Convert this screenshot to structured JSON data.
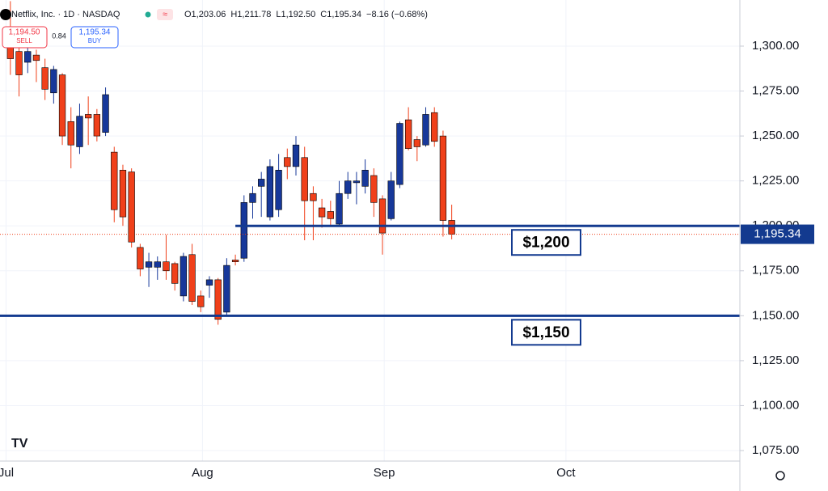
{
  "header": {
    "symbol": "Netflix, Inc. · 1D · NASDAQ",
    "ohlc": [
      "O1,203.06",
      "H1,211.78",
      "L1,192.50",
      "C1,195.34",
      "−8.16 (−0.68%)"
    ],
    "sell_price": "1,194.50",
    "sell": "SELL",
    "spread": "0.84",
    "buy_price": "1,195.34",
    "buy": "BUY"
  },
  "chart_data": {
    "type": "candlestick",
    "up_color": "#17389a",
    "down_color": "#f0401a",
    "open": [
      1302,
      1297,
      1291,
      1295,
      1288,
      1274,
      1284,
      1258,
      1244,
      1262,
      1262,
      1252,
      1241,
      1231,
      1230,
      1188,
      1177,
      1177,
      1180,
      1179,
      1161,
      1184,
      1161,
      1167,
      1170,
      1152,
      1181,
      1182,
      1213,
      1222,
      1205,
      1209,
      1238,
      1233,
      1238,
      1218,
      1210,
      1208,
      1201,
      1218,
      1224,
      1222,
      1228,
      1215,
      1204,
      1223,
      1259,
      1248,
      1245,
      1263,
      1250,
      1203.06
    ],
    "high": [
      1325,
      1300,
      1300,
      1298,
      1293,
      1289,
      1285,
      1266,
      1268,
      1272,
      1265,
      1277,
      1244,
      1234,
      1232,
      1190,
      1185,
      1183,
      1195,
      1180,
      1185,
      1190,
      1164,
      1172,
      1171,
      1182,
      1184,
      1217,
      1222,
      1230,
      1237,
      1240,
      1243,
      1250,
      1244,
      1222,
      1215,
      1214,
      1225,
      1230,
      1230,
      1237,
      1232,
      1217,
      1230,
      1258,
      1266,
      1250,
      1266,
      1266,
      1253,
      1211.78
    ],
    "low": [
      1284,
      1272,
      1285,
      1280,
      1270,
      1268,
      1245,
      1232,
      1240,
      1245,
      1247,
      1250,
      1202,
      1200,
      1188,
      1172,
      1166,
      1170,
      1170,
      1164,
      1158,
      1156,
      1152,
      1160,
      1145,
      1150,
      1178,
      1180,
      1204,
      1205,
      1203,
      1205,
      1226,
      1228,
      1192,
      1192,
      1199,
      1200,
      1200,
      1215,
      1212,
      1218,
      1205,
      1184,
      1203,
      1221,
      1242,
      1236,
      1244,
      1244,
      1194,
      1192.5
    ],
    "close": [
      1293,
      1284,
      1297,
      1292,
      1276,
      1287,
      1250,
      1245,
      1261,
      1260,
      1250,
      1273,
      1209,
      1205,
      1191,
      1176,
      1180,
      1180,
      1175,
      1168,
      1183,
      1158,
      1155,
      1170,
      1148,
      1178,
      1180,
      1213,
      1218,
      1226,
      1233,
      1231,
      1233,
      1245,
      1214,
      1214,
      1205,
      1204,
      1218,
      1225,
      1225,
      1231,
      1213,
      1196,
      1225,
      1257,
      1243,
      1244,
      1262,
      1247,
      1203,
      1195.34
    ],
    "xlim": [
      -1.2,
      84.3
    ],
    "xticks": [
      {
        "value": -0.5,
        "label": "Jul"
      },
      {
        "value": 22.2,
        "label": "Aug"
      },
      {
        "value": 43.2,
        "label": "Sep"
      },
      {
        "value": 64.2,
        "label": "Oct"
      }
    ],
    "ylim": [
      1069.15,
      1325.65
    ],
    "yticks": [
      {
        "value": 1075,
        "label": "1,075.00"
      },
      {
        "value": 1100,
        "label": "1,100.00"
      },
      {
        "value": 1125,
        "label": "1,125.00"
      },
      {
        "value": 1150,
        "label": "1,150.00"
      },
      {
        "value": 1175,
        "label": "1,175.00"
      },
      {
        "value": 1200,
        "label": "1,200.00"
      },
      {
        "value": 1225,
        "label": "1,225.00"
      },
      {
        "value": 1250,
        "label": "1,250.00"
      },
      {
        "value": 1275,
        "label": "1,275.00"
      },
      {
        "value": 1300,
        "label": "1,300.00"
      }
    ],
    "grid": true,
    "levels": [
      {
        "value": 1200,
        "label": "$1,200",
        "from": 26,
        "color": "#133a8f"
      },
      {
        "value": 1150,
        "label": "$1,150",
        "from": -1.2,
        "color": "#133a8f"
      }
    ],
    "last_price": {
      "value": 1195.34,
      "label": "1,195.34",
      "color": "#133a8f"
    }
  }
}
